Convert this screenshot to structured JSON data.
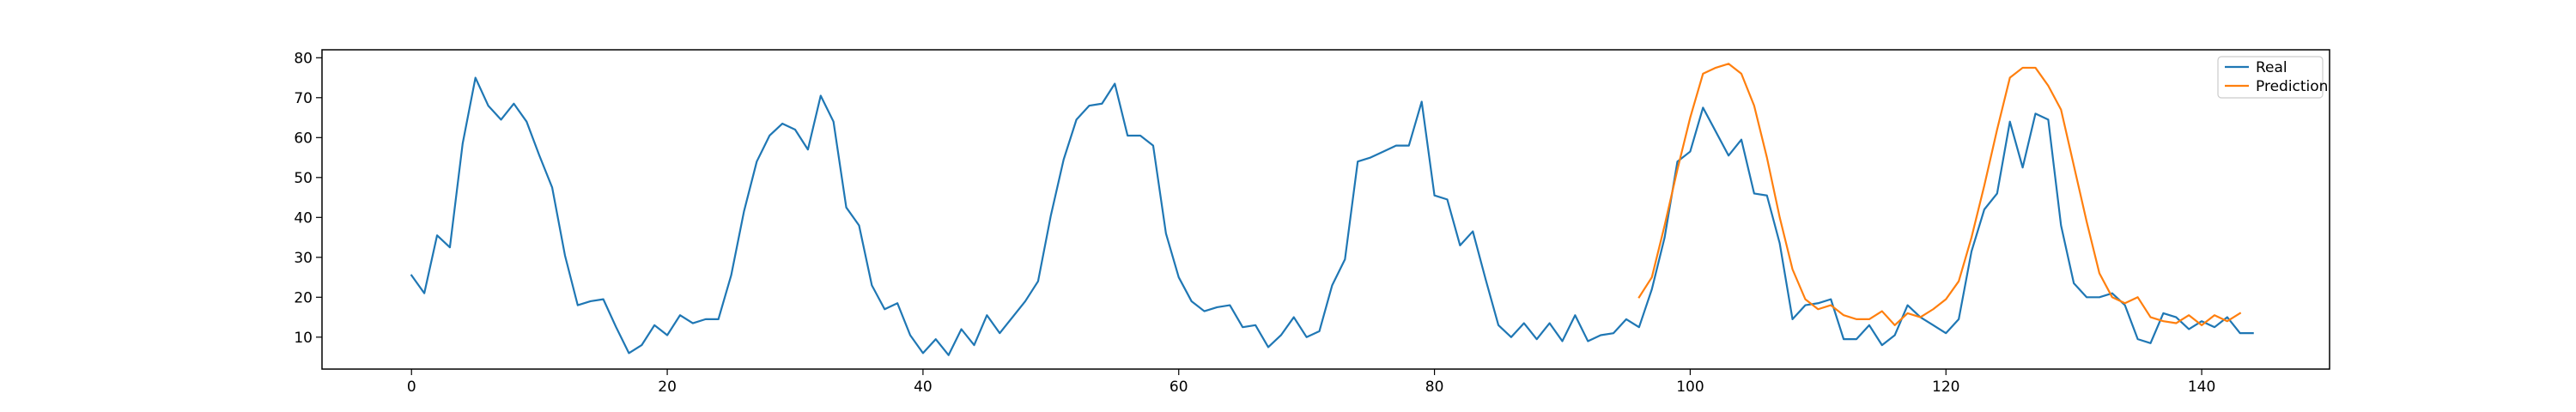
{
  "chart_data": {
    "type": "line",
    "title": "",
    "xlabel": "",
    "ylabel": "",
    "xlim": [
      -7,
      150
    ],
    "ylim": [
      2,
      82
    ],
    "x_ticks": [
      0,
      20,
      40,
      60,
      80,
      100,
      120,
      140
    ],
    "y_ticks": [
      10,
      20,
      30,
      40,
      50,
      60,
      70,
      80
    ],
    "grid": false,
    "legend_position": "top-right",
    "series": [
      {
        "name": "Real",
        "color": "#1f77b4",
        "x_start": 0,
        "values": [
          25.5,
          21,
          35.5,
          32.5,
          58.5,
          75,
          68,
          64.5,
          68.5,
          64,
          55.5,
          47.5,
          30.5,
          18,
          19,
          19.5,
          12.5,
          6,
          8,
          13,
          10.5,
          15.5,
          13.5,
          14.5,
          14.5,
          25.5,
          41.5,
          54,
          60.5,
          63.5,
          62,
          57,
          70.5,
          64,
          42.5,
          38,
          23,
          17,
          18.5,
          10.5,
          6,
          9.5,
          5.5,
          12,
          8,
          15.5,
          11,
          15,
          19,
          24,
          40.5,
          54.5,
          64.5,
          68,
          68.5,
          73.5,
          60.5,
          60.5,
          58,
          36,
          25,
          19,
          16.5,
          17.5,
          18,
          12.5,
          13,
          7.5,
          10.5,
          15,
          10,
          11.5,
          23,
          29.5,
          54,
          55,
          56.5,
          58,
          58,
          69,
          45.5,
          44.5,
          33,
          36.5,
          24.5,
          13,
          10,
          13.5,
          9.5,
          13.5,
          9,
          15.5,
          9,
          10.5,
          11,
          14.5,
          12.5,
          22,
          35,
          54,
          56.5,
          67.5,
          61.5,
          55.5,
          59.5,
          46,
          45.5,
          33.5,
          14.5,
          18,
          18.5,
          19.5,
          9.5,
          9.5,
          13,
          8,
          10.5,
          18,
          15,
          13,
          11,
          14.5,
          31.5,
          42,
          46,
          64,
          52.5,
          66,
          64.5,
          38,
          23.5,
          20,
          20,
          21,
          18,
          9.5,
          8.5,
          16,
          15,
          12,
          14,
          12.5,
          15,
          11,
          11
        ]
      },
      {
        "name": "Prediction",
        "color": "#ff7f0e",
        "x_start": 96,
        "values": [
          20,
          25,
          38,
          52,
          65,
          76,
          77.5,
          78.5,
          76,
          68,
          55,
          40,
          27,
          19.5,
          17,
          18,
          15.5,
          14.5,
          14.5,
          16.5,
          13,
          16,
          15,
          17,
          19.5,
          24,
          35,
          48,
          62,
          75,
          77.5,
          77.5,
          73,
          67,
          53,
          39,
          26,
          20,
          18.5,
          20,
          15,
          14,
          13.5,
          15.5,
          13,
          15.5,
          14,
          16
        ]
      }
    ]
  }
}
